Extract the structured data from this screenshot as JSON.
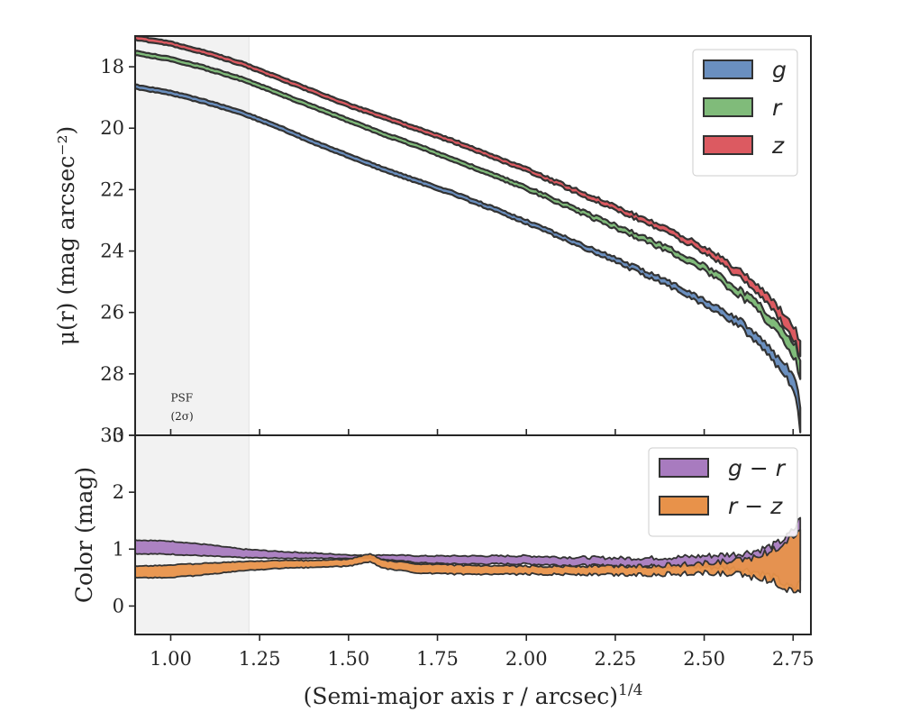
{
  "chart_data": [
    {
      "type": "area",
      "panel": "surface-brightness",
      "xlim": [
        0.9,
        2.8
      ],
      "ylim": [
        30,
        17
      ],
      "ylabel": "μ(r) (mag arcsec⁻²)",
      "yticks": [
        "18",
        "20",
        "22",
        "24",
        "26",
        "28",
        "30"
      ],
      "yticks_values": [
        18,
        20,
        22,
        24,
        26,
        28,
        30
      ],
      "legend_position": "top-right",
      "series": [
        {
          "name": "g",
          "color": "#6a8fbf",
          "x": [
            0.9,
            1.0,
            1.1,
            1.2,
            1.3,
            1.4,
            1.5,
            1.6,
            1.7,
            1.8,
            1.9,
            2.0,
            2.1,
            2.2,
            2.3,
            2.4,
            2.5,
            2.6,
            2.65,
            2.7,
            2.73,
            2.76,
            2.77
          ],
          "center": [
            18.65,
            18.85,
            19.15,
            19.5,
            19.95,
            20.45,
            20.9,
            21.35,
            21.75,
            22.15,
            22.6,
            23.05,
            23.55,
            24.05,
            24.55,
            25.05,
            25.65,
            26.35,
            26.85,
            27.5,
            27.9,
            28.6,
            29.6
          ],
          "half_width": [
            0.07,
            0.07,
            0.07,
            0.07,
            0.07,
            0.07,
            0.07,
            0.07,
            0.07,
            0.07,
            0.07,
            0.07,
            0.07,
            0.08,
            0.08,
            0.09,
            0.1,
            0.12,
            0.14,
            0.16,
            0.2,
            0.28,
            0.4
          ]
        },
        {
          "name": "r",
          "color": "#80bb7a",
          "x": [
            0.9,
            1.0,
            1.1,
            1.2,
            1.3,
            1.4,
            1.5,
            1.6,
            1.7,
            1.8,
            1.9,
            2.0,
            2.1,
            2.2,
            2.3,
            2.4,
            2.5,
            2.6,
            2.65,
            2.7,
            2.73,
            2.76,
            2.77
          ],
          "center": [
            17.55,
            17.75,
            18.05,
            18.4,
            18.85,
            19.3,
            19.75,
            20.2,
            20.6,
            21.05,
            21.5,
            21.95,
            22.45,
            22.95,
            23.45,
            23.95,
            24.55,
            25.35,
            25.8,
            26.45,
            26.85,
            27.35,
            27.95
          ],
          "half_width": [
            0.07,
            0.07,
            0.07,
            0.07,
            0.07,
            0.07,
            0.07,
            0.07,
            0.07,
            0.07,
            0.07,
            0.07,
            0.07,
            0.08,
            0.08,
            0.09,
            0.1,
            0.12,
            0.14,
            0.16,
            0.2,
            0.25,
            0.3
          ]
        },
        {
          "name": "z",
          "color": "#dc5a61",
          "x": [
            0.9,
            1.0,
            1.1,
            1.2,
            1.3,
            1.4,
            1.5,
            1.6,
            1.7,
            1.8,
            1.9,
            2.0,
            2.1,
            2.2,
            2.3,
            2.4,
            2.5,
            2.6,
            2.65,
            2.7,
            2.73,
            2.76,
            2.77
          ],
          "center": [
            17.05,
            17.25,
            17.55,
            17.9,
            18.35,
            18.8,
            19.25,
            19.65,
            20.05,
            20.45,
            20.9,
            21.35,
            21.85,
            22.35,
            22.85,
            23.35,
            23.95,
            24.75,
            25.2,
            25.85,
            26.3,
            26.85,
            27.25
          ],
          "half_width": [
            0.07,
            0.07,
            0.07,
            0.07,
            0.07,
            0.07,
            0.07,
            0.07,
            0.07,
            0.07,
            0.07,
            0.07,
            0.07,
            0.08,
            0.08,
            0.09,
            0.1,
            0.12,
            0.14,
            0.16,
            0.2,
            0.22,
            0.25
          ]
        }
      ],
      "annotation": {
        "text_line1": "PSF",
        "text_line2": "(2σ)",
        "x": 1.0,
        "y1": 28.9,
        "y2": 29.5
      },
      "shaded_region": {
        "x_from": 0.9,
        "x_to": 1.22
      }
    },
    {
      "type": "area",
      "panel": "color",
      "xlim": [
        0.9,
        2.8
      ],
      "ylim": [
        -0.5,
        3
      ],
      "xlabel_main": "(Semi-major axis r / arcsec)",
      "xlabel_sup": "1/4",
      "ylabel": "Color (mag)",
      "yticks": [
        "0",
        "1",
        "2",
        "3"
      ],
      "yticks_values": [
        0,
        1,
        2,
        3
      ],
      "xticks": [
        "1.00",
        "1.25",
        "1.50",
        "1.75",
        "2.00",
        "2.25",
        "2.50",
        "2.75"
      ],
      "xticks_values": [
        1.0,
        1.25,
        1.5,
        1.75,
        2.0,
        2.25,
        2.5,
        2.75
      ],
      "legend_position": "top-right",
      "series": [
        {
          "name": "g − r",
          "color": "#a87bbf",
          "x": [
            0.9,
            1.0,
            1.1,
            1.2,
            1.3,
            1.4,
            1.5,
            1.56,
            1.6,
            1.7,
            1.8,
            1.9,
            2.0,
            2.1,
            2.2,
            2.3,
            2.4,
            2.5,
            2.6,
            2.65,
            2.7,
            2.73,
            2.76,
            2.77
          ],
          "lower": [
            0.92,
            0.91,
            0.88,
            0.85,
            0.84,
            0.84,
            0.84,
            0.85,
            0.82,
            0.76,
            0.74,
            0.74,
            0.74,
            0.72,
            0.71,
            0.7,
            0.7,
            0.69,
            0.66,
            0.6,
            0.5,
            0.35,
            0.3,
            0.5
          ],
          "upper": [
            1.16,
            1.14,
            1.08,
            1.0,
            0.96,
            0.93,
            0.9,
            0.88,
            0.9,
            0.88,
            0.88,
            0.88,
            0.88,
            0.86,
            0.85,
            0.84,
            0.85,
            0.88,
            0.92,
            0.98,
            1.08,
            1.2,
            1.4,
            1.6
          ]
        },
        {
          "name": "r − z",
          "color": "#e8924a",
          "x": [
            0.9,
            1.0,
            1.1,
            1.2,
            1.3,
            1.4,
            1.5,
            1.56,
            1.6,
            1.7,
            1.8,
            1.9,
            2.0,
            2.1,
            2.2,
            2.3,
            2.4,
            2.5,
            2.6,
            2.65,
            2.7,
            2.73,
            2.76,
            2.77
          ],
          "lower": [
            0.5,
            0.5,
            0.55,
            0.62,
            0.66,
            0.68,
            0.7,
            0.78,
            0.66,
            0.58,
            0.56,
            0.55,
            0.56,
            0.56,
            0.55,
            0.55,
            0.56,
            0.58,
            0.55,
            0.5,
            0.42,
            0.3,
            0.25,
            0.3
          ],
          "upper": [
            0.7,
            0.72,
            0.75,
            0.78,
            0.8,
            0.8,
            0.82,
            0.92,
            0.8,
            0.74,
            0.72,
            0.7,
            0.7,
            0.7,
            0.7,
            0.7,
            0.72,
            0.75,
            0.8,
            0.88,
            1.0,
            1.15,
            1.25,
            1.4
          ]
        }
      ],
      "shaded_region": {
        "x_from": 0.9,
        "x_to": 1.22
      }
    }
  ]
}
